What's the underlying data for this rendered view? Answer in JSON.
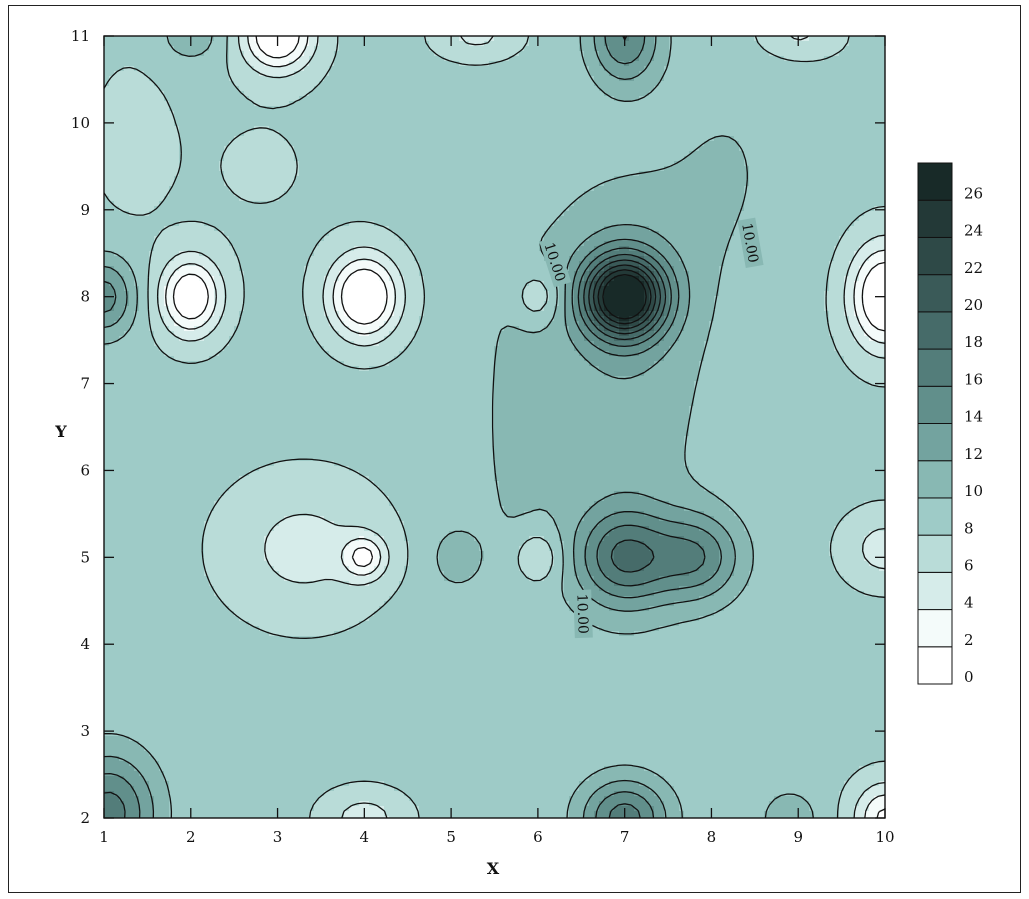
{
  "chart_data": {
    "type": "contour",
    "title": "",
    "xlabel": "X",
    "ylabel": "Y",
    "xlim": [
      1,
      10
    ],
    "ylim": [
      2,
      11
    ],
    "x_ticks": [
      "1",
      "2",
      "3",
      "4",
      "5",
      "6",
      "7",
      "8",
      "9",
      "10"
    ],
    "y_ticks": [
      "2",
      "3",
      "4",
      "5",
      "6",
      "7",
      "8",
      "9",
      "10",
      "11"
    ],
    "contour_levels": [
      0,
      2,
      4,
      6,
      8,
      10,
      12,
      14,
      16,
      18,
      20,
      22,
      24,
      26
    ],
    "colorbar": {
      "labels": [
        "0",
        "2",
        "4",
        "6",
        "8",
        "10",
        "12",
        "14",
        "16",
        "18",
        "20",
        "22",
        "24",
        "26"
      ],
      "colors": [
        "#ffffff",
        "#f4fbfa",
        "#d6ecea",
        "#b9dcd8",
        "#9ecbc7",
        "#88b8b3",
        "#73a39f",
        "#618f8b",
        "#537d7a",
        "#466b69",
        "#3a5a58",
        "#2e4947",
        "#233937",
        "#182a28"
      ]
    },
    "contour_labels": [
      "10.00",
      "10.00",
      "10.00"
    ],
    "features": [
      {
        "x": 7.0,
        "y": 8.0,
        "value": 27,
        "kind": "peak"
      },
      {
        "x": 7.0,
        "y": 5.0,
        "value": 18,
        "kind": "peak"
      },
      {
        "x": 7.9,
        "y": 5.0,
        "value": 16,
        "kind": "peak"
      },
      {
        "x": 5.05,
        "y": 5.0,
        "value": 11,
        "kind": "peak"
      },
      {
        "x": 1.0,
        "y": 8.0,
        "value": 15,
        "kind": "peak"
      },
      {
        "x": 1.1,
        "y": 2.1,
        "value": 17,
        "kind": "peak"
      },
      {
        "x": 7.0,
        "y": 2.1,
        "value": 17,
        "kind": "peak"
      },
      {
        "x": 7.0,
        "y": 11.0,
        "value": 16,
        "kind": "peak"
      },
      {
        "x": 2.0,
        "y": 8.0,
        "value": 0,
        "kind": "trough"
      },
      {
        "x": 4.0,
        "y": 8.0,
        "value": 0,
        "kind": "trough"
      },
      {
        "x": 4.0,
        "y": 5.0,
        "value": 1,
        "kind": "trough"
      },
      {
        "x": 10.0,
        "y": 8.0,
        "value": 0,
        "kind": "trough"
      },
      {
        "x": 3.0,
        "y": 11.0,
        "value": 0,
        "kind": "trough"
      },
      {
        "x": 6.0,
        "y": 8.0,
        "value": 5,
        "kind": "trough"
      },
      {
        "x": 6.0,
        "y": 5.0,
        "value": 5,
        "kind": "trough"
      },
      {
        "x": 10.0,
        "y": 2.0,
        "value": 2,
        "kind": "trough"
      }
    ],
    "grid": false,
    "legend": "colorbar-right"
  }
}
